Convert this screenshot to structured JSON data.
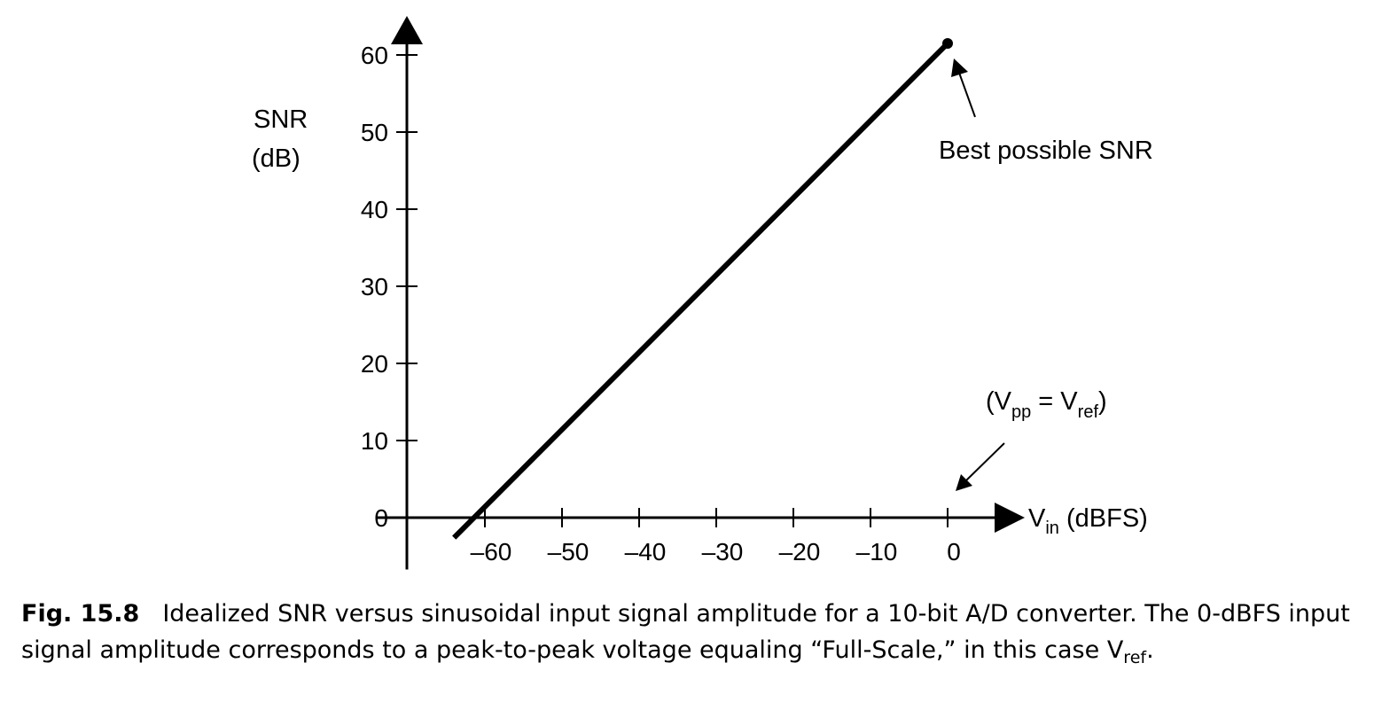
{
  "chart_data": {
    "type": "line",
    "title": "",
    "xlabel": {
      "main": "V",
      "sub": "in",
      "unit": " (dBFS)"
    },
    "ylabel": {
      "line1": "SNR",
      "line2": "(dB)"
    },
    "xlim": [
      -70,
      6
    ],
    "ylim": [
      -5,
      62
    ],
    "xticks": [
      -60,
      -50,
      -40,
      -30,
      -20,
      -10,
      0
    ],
    "xtick_labels": [
      "–60",
      "–50",
      "–40",
      "–30",
      "–20",
      "–10",
      "0"
    ],
    "yticks": [
      0,
      10,
      20,
      30,
      40,
      50,
      60
    ],
    "ytick_labels": [
      "0",
      "10",
      "20",
      "30",
      "40",
      "50",
      "60"
    ],
    "series": [
      {
        "x": [
          -64,
          0
        ],
        "y": [
          -2.6,
          61.5
        ]
      }
    ],
    "endpoint": {
      "x": 0,
      "y": 61.5
    },
    "annotations": {
      "best_snr": "Best possible SNR",
      "vpp_open": "(V",
      "vpp_sub": "pp",
      "vpp_eq": " = V",
      "vref_sub": "ref",
      "vpp_close": ")"
    },
    "grid": false
  },
  "caption": {
    "label": "Fig. 15.8",
    "text": "Idealized SNR versus  sinusoidal input signal  amplitude for  a 10-bit A/D  converter. The 0-dBFS input signal amplitude corresponds to a peak-to-peak voltage equaling “Full-Scale,” in this case V",
    "sub": "ref",
    "end": "."
  }
}
